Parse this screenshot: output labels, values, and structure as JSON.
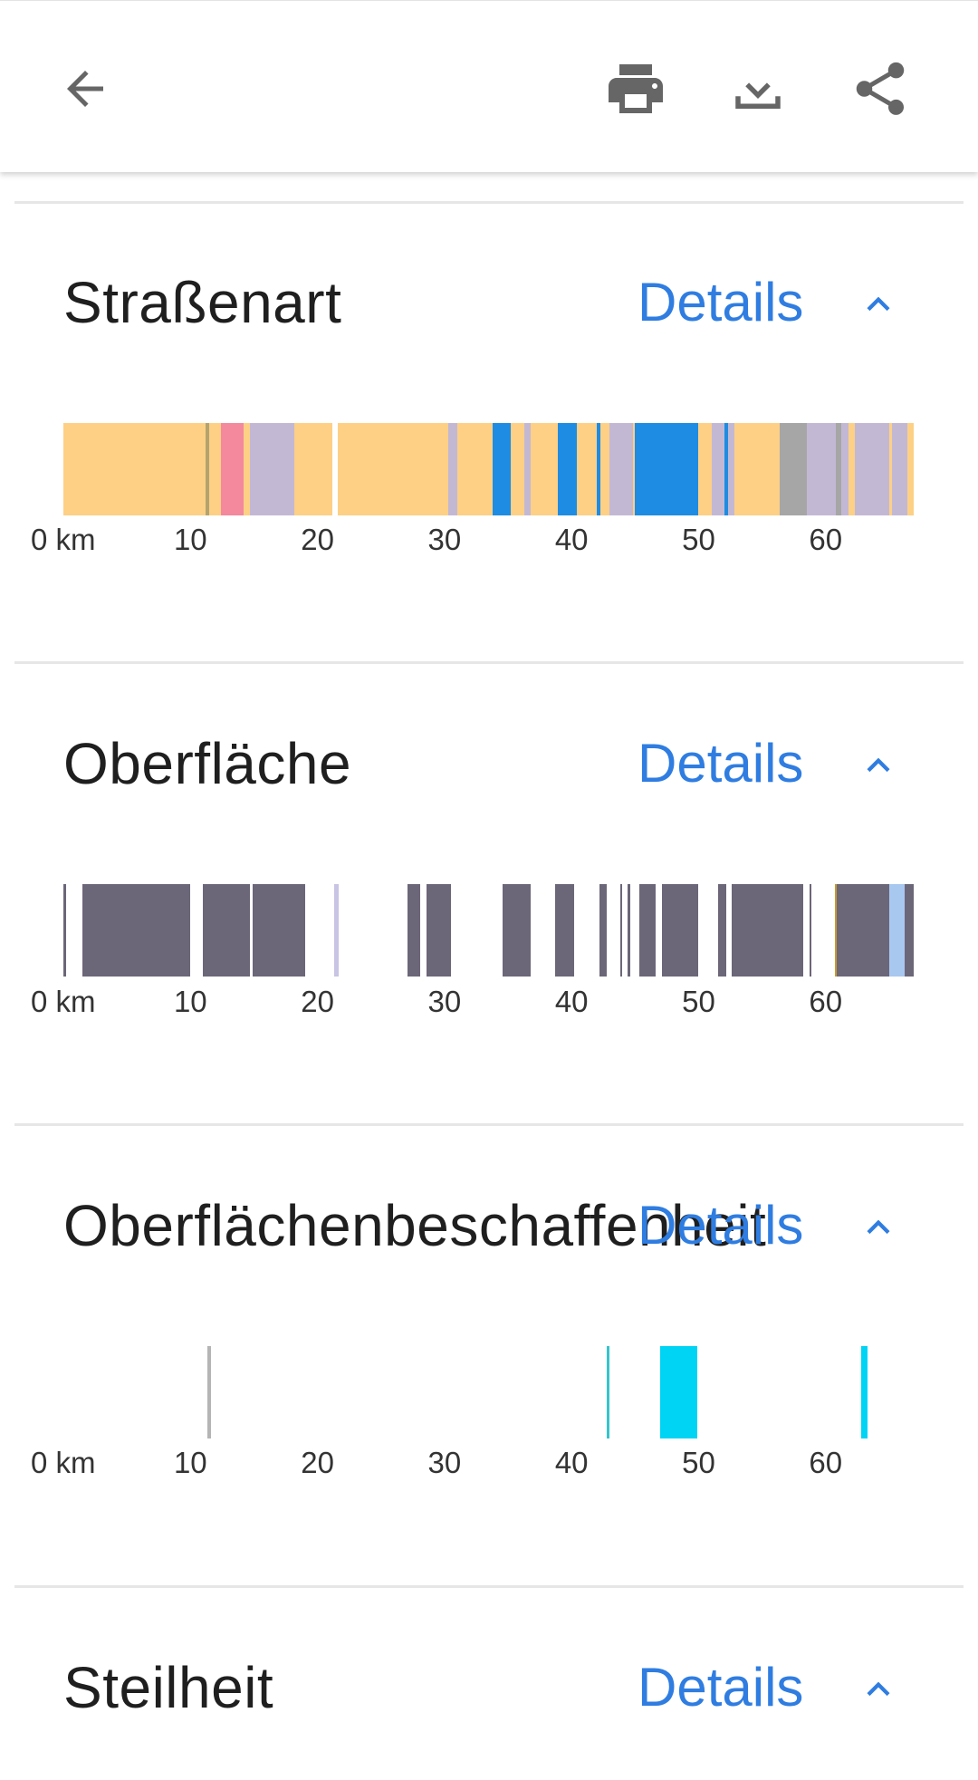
{
  "toolbar": {
    "back_icon": "arrow-left-icon",
    "print_icon": "printer-icon",
    "download_icon": "download-icon",
    "share_icon": "share-icon"
  },
  "axis": {
    "max_km": 67,
    "ticks": [
      {
        "km": 0,
        "label": "0 km"
      },
      {
        "km": 10,
        "label": "10"
      },
      {
        "km": 20,
        "label": "20"
      },
      {
        "km": 30,
        "label": "30"
      },
      {
        "km": 40,
        "label": "40"
      },
      {
        "km": 50,
        "label": "50"
      },
      {
        "km": 60,
        "label": "60"
      }
    ]
  },
  "sections": [
    {
      "title": "Straßenart",
      "details_label": "Details",
      "segments": [
        {
          "start": 0.0,
          "end": 11.2,
          "color": "#fdd086"
        },
        {
          "start": 11.2,
          "end": 11.5,
          "color": "#b5a36e"
        },
        {
          "start": 11.5,
          "end": 12.4,
          "color": "#fdd086"
        },
        {
          "start": 12.4,
          "end": 14.2,
          "color": "#f4889c"
        },
        {
          "start": 14.2,
          "end": 14.7,
          "color": "#fdd086"
        },
        {
          "start": 14.7,
          "end": 18.2,
          "color": "#c3b8d4"
        },
        {
          "start": 18.2,
          "end": 21.2,
          "color": "#fdd086"
        },
        {
          "start": 21.6,
          "end": 30.3,
          "color": "#fdd086"
        },
        {
          "start": 30.3,
          "end": 31.0,
          "color": "#c3b8d4"
        },
        {
          "start": 31.0,
          "end": 33.8,
          "color": "#fdd086"
        },
        {
          "start": 33.8,
          "end": 35.2,
          "color": "#1f8ce3"
        },
        {
          "start": 35.2,
          "end": 36.3,
          "color": "#fdd086"
        },
        {
          "start": 36.3,
          "end": 36.8,
          "color": "#c3b8d4"
        },
        {
          "start": 36.8,
          "end": 38.9,
          "color": "#fdd086"
        },
        {
          "start": 38.9,
          "end": 40.4,
          "color": "#1f8ce3"
        },
        {
          "start": 40.4,
          "end": 42.0,
          "color": "#fdd086"
        },
        {
          "start": 42.0,
          "end": 42.3,
          "color": "#1f8ce3"
        },
        {
          "start": 42.3,
          "end": 43.0,
          "color": "#fdd086"
        },
        {
          "start": 43.0,
          "end": 44.8,
          "color": "#c3b8d4"
        },
        {
          "start": 44.8,
          "end": 45.0,
          "color": "#fdd086"
        },
        {
          "start": 45.0,
          "end": 50.0,
          "color": "#1f8ce3"
        },
        {
          "start": 50.0,
          "end": 51.0,
          "color": "#fdd086"
        },
        {
          "start": 51.0,
          "end": 52.0,
          "color": "#c3b8d4"
        },
        {
          "start": 52.0,
          "end": 52.3,
          "color": "#1f8ce3"
        },
        {
          "start": 52.3,
          "end": 52.8,
          "color": "#c3b8d4"
        },
        {
          "start": 52.8,
          "end": 56.4,
          "color": "#fdd086"
        },
        {
          "start": 56.4,
          "end": 58.5,
          "color": "#a6a6a6"
        },
        {
          "start": 58.5,
          "end": 60.8,
          "color": "#c3b8d4"
        },
        {
          "start": 60.8,
          "end": 61.2,
          "color": "#a6a6a6"
        },
        {
          "start": 61.2,
          "end": 61.8,
          "color": "#c3b8d4"
        },
        {
          "start": 61.8,
          "end": 62.3,
          "color": "#fdd086"
        },
        {
          "start": 62.3,
          "end": 65.0,
          "color": "#c3b8d4"
        },
        {
          "start": 65.0,
          "end": 65.2,
          "color": "#fdd086"
        },
        {
          "start": 65.2,
          "end": 66.4,
          "color": "#c3b8d4"
        },
        {
          "start": 66.4,
          "end": 66.9,
          "color": "#fdd086"
        }
      ]
    },
    {
      "title": "Oberfläche",
      "details_label": "Details",
      "segments": [
        {
          "start": 0.0,
          "end": 0.2,
          "color": "#6c6679"
        },
        {
          "start": 1.5,
          "end": 10.0,
          "color": "#6c6679"
        },
        {
          "start": 11.0,
          "end": 14.7,
          "color": "#6c6679"
        },
        {
          "start": 14.9,
          "end": 19.0,
          "color": "#6c6679"
        },
        {
          "start": 21.3,
          "end": 21.7,
          "color": "#c8c4e4"
        },
        {
          "start": 27.1,
          "end": 28.1,
          "color": "#6c6679"
        },
        {
          "start": 28.6,
          "end": 30.5,
          "color": "#6c6679"
        },
        {
          "start": 34.6,
          "end": 36.8,
          "color": "#6c6679"
        },
        {
          "start": 38.7,
          "end": 40.2,
          "color": "#6c6679"
        },
        {
          "start": 42.2,
          "end": 42.8,
          "color": "#6c6679"
        },
        {
          "start": 43.8,
          "end": 44.0,
          "color": "#6c6679"
        },
        {
          "start": 44.4,
          "end": 44.6,
          "color": "#6c6679"
        },
        {
          "start": 45.3,
          "end": 46.6,
          "color": "#6c6679"
        },
        {
          "start": 47.1,
          "end": 50.0,
          "color": "#6c6679"
        },
        {
          "start": 51.5,
          "end": 52.2,
          "color": "#6c6679"
        },
        {
          "start": 52.6,
          "end": 58.2,
          "color": "#6c6679"
        },
        {
          "start": 58.7,
          "end": 58.9,
          "color": "#6c6679"
        },
        {
          "start": 60.7,
          "end": 60.9,
          "color": "#c99a2e"
        },
        {
          "start": 60.9,
          "end": 65.0,
          "color": "#6c6679"
        },
        {
          "start": 65.0,
          "end": 66.2,
          "color": "#a8c8f0"
        },
        {
          "start": 66.2,
          "end": 66.9,
          "color": "#6c6679"
        }
      ]
    },
    {
      "title": "Oberflächenbeschaffenheit",
      "details_label": "Details",
      "segments": [
        {
          "start": 11.3,
          "end": 11.6,
          "color": "#b5b5b5"
        },
        {
          "start": 42.8,
          "end": 43.0,
          "color": "#36c4cc"
        },
        {
          "start": 47.0,
          "end": 49.9,
          "color": "#00d4f5"
        },
        {
          "start": 62.8,
          "end": 63.3,
          "color": "#00d4f5"
        }
      ]
    },
    {
      "title": "Steilheit",
      "details_label": "Details",
      "segments": []
    }
  ]
}
